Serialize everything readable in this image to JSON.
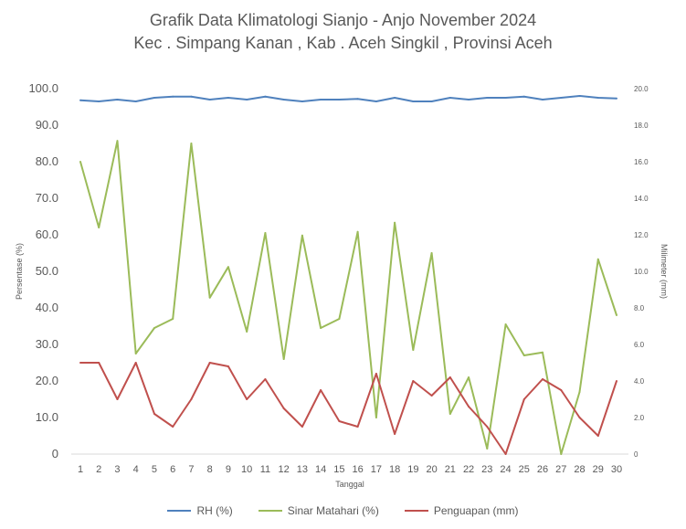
{
  "chart_data": {
    "type": "line",
    "title": "Grafik Data Klimatologi Sianjo - Anjo November 2024",
    "subtitle": "Kec . Simpang Kanan , Kab . Aceh Singkil , Provinsi  Aceh",
    "xlabel": "Tanggal",
    "ylabel": "Persentase (%)",
    "y2label": "Milimeter (mm)",
    "ylim": [
      0,
      100
    ],
    "y2lim": [
      0,
      20
    ],
    "yticks": [
      "0",
      "10.0",
      "20.0",
      "30.0",
      "40.0",
      "50.0",
      "60.0",
      "70.0",
      "80.0",
      "90.0",
      "100.0"
    ],
    "y2ticks": [
      "0",
      "2.0",
      "4.0",
      "6.0",
      "8.0",
      "10.0",
      "12.0",
      "14.0",
      "16.0",
      "18.0",
      "20.0"
    ],
    "x": [
      1,
      2,
      3,
      4,
      5,
      6,
      7,
      8,
      9,
      10,
      11,
      12,
      13,
      14,
      15,
      16,
      17,
      18,
      19,
      20,
      21,
      22,
      23,
      24,
      25,
      26,
      27,
      28,
      29,
      30
    ],
    "grid": false,
    "legend_position": "bottom",
    "series": [
      {
        "name": "RH (%)",
        "axis": "left",
        "color": "#4F81BD",
        "values": [
          96.8,
          96.5,
          97.0,
          96.5,
          97.5,
          97.8,
          97.8,
          97.0,
          97.5,
          97.0,
          97.8,
          97.0,
          96.5,
          97.0,
          97.0,
          97.2,
          96.5,
          97.5,
          96.5,
          96.5,
          97.5,
          97.0,
          97.5,
          97.5,
          97.8,
          97.0,
          97.5,
          98.0,
          97.5,
          97.3
        ]
      },
      {
        "name": "Sinar Matahari (%)",
        "axis": "left",
        "color": "#9BBB59",
        "values": [
          80.0,
          62.0,
          85.7,
          27.5,
          34.5,
          37.0,
          85.0,
          42.8,
          51.2,
          33.5,
          60.5,
          26.0,
          59.8,
          34.5,
          37.0,
          60.8,
          10.0,
          63.3,
          28.5,
          55.0,
          11.0,
          21.0,
          1.5,
          35.5,
          27.0,
          27.8,
          0.0,
          17.0,
          53.3,
          38.0
        ]
      },
      {
        "name": "Penguapan (mm)",
        "axis": "right",
        "color": "#C0504D",
        "values": [
          5.0,
          5.0,
          3.0,
          5.0,
          2.2,
          1.5,
          3.0,
          5.0,
          4.8,
          3.0,
          4.1,
          2.5,
          1.5,
          3.5,
          1.8,
          1.5,
          4.4,
          1.1,
          4.0,
          3.2,
          4.2,
          2.6,
          1.5,
          0.0,
          3.0,
          4.1,
          3.5,
          2.0,
          1.0,
          4.0
        ]
      }
    ]
  }
}
